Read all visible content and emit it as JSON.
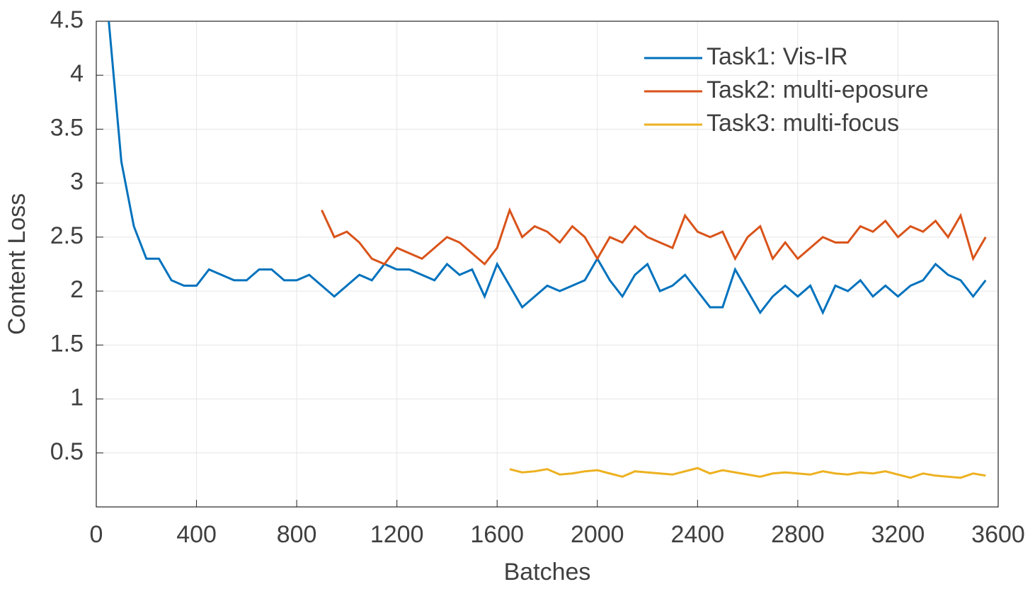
{
  "chart_data": {
    "type": "line",
    "xlabel": "Batches",
    "ylabel": "Content Loss",
    "x": [
      0,
      50,
      100,
      150,
      200,
      250,
      300,
      350,
      400,
      450,
      500,
      550,
      600,
      650,
      700,
      750,
      800,
      850,
      900,
      950,
      1000,
      1050,
      1100,
      1150,
      1200,
      1250,
      1300,
      1350,
      1400,
      1450,
      1500,
      1550,
      1600,
      1650,
      1700,
      1750,
      1800,
      1850,
      1900,
      1950,
      2000,
      2050,
      2100,
      2150,
      2200,
      2250,
      2300,
      2350,
      2400,
      2450,
      2500,
      2550,
      2600,
      2650,
      2700,
      2750,
      2800,
      2850,
      2900,
      2950,
      3000,
      3050,
      3100,
      3150,
      3200,
      3250,
      3300,
      3350,
      3400,
      3450,
      3500,
      3550
    ],
    "series": [
      {
        "name": "Task1: Vis-IR",
        "color": "#0072BD",
        "values": [
          null,
          4.5,
          3.2,
          2.6,
          2.3,
          2.3,
          2.1,
          2.05,
          2.05,
          2.2,
          2.15,
          2.1,
          2.1,
          2.2,
          2.2,
          2.1,
          2.1,
          2.15,
          2.05,
          1.95,
          2.05,
          2.15,
          2.1,
          2.25,
          2.2,
          2.2,
          2.15,
          2.1,
          2.25,
          2.15,
          2.2,
          1.95,
          2.25,
          2.05,
          1.85,
          1.95,
          2.05,
          2.0,
          2.05,
          2.1,
          2.3,
          2.1,
          1.95,
          2.15,
          2.25,
          2.0,
          2.05,
          2.15,
          2.0,
          1.85,
          1.85,
          2.2,
          2.0,
          1.8,
          1.95,
          2.05,
          1.95,
          2.05,
          1.8,
          2.05,
          2.0,
          2.1,
          1.95,
          2.05,
          1.95,
          2.05,
          2.1,
          2.25,
          2.15,
          2.1,
          1.95,
          2.1
        ]
      },
      {
        "name": "Task2: multi-eposure",
        "color": "#D95319",
        "values": [
          null,
          null,
          null,
          null,
          null,
          null,
          null,
          null,
          null,
          null,
          null,
          null,
          null,
          null,
          null,
          null,
          null,
          null,
          2.75,
          2.5,
          2.55,
          2.45,
          2.3,
          2.25,
          2.4,
          2.35,
          2.3,
          2.4,
          2.5,
          2.45,
          2.35,
          2.25,
          2.4,
          2.75,
          2.5,
          2.6,
          2.55,
          2.45,
          2.6,
          2.5,
          2.3,
          2.5,
          2.45,
          2.6,
          2.5,
          2.45,
          2.4,
          2.7,
          2.55,
          2.5,
          2.55,
          2.3,
          2.5,
          2.6,
          2.3,
          2.45,
          2.3,
          2.4,
          2.5,
          2.45,
          2.45,
          2.6,
          2.55,
          2.65,
          2.5,
          2.6,
          2.55,
          2.65,
          2.5,
          2.7,
          2.3,
          2.5
        ]
      },
      {
        "name": "Task3: multi-focus",
        "color": "#EDB120",
        "values": [
          null,
          null,
          null,
          null,
          null,
          null,
          null,
          null,
          null,
          null,
          null,
          null,
          null,
          null,
          null,
          null,
          null,
          null,
          null,
          null,
          null,
          null,
          null,
          null,
          null,
          null,
          null,
          null,
          null,
          null,
          null,
          null,
          null,
          0.35,
          0.32,
          0.33,
          0.35,
          0.3,
          0.31,
          0.33,
          0.34,
          0.31,
          0.28,
          0.33,
          0.32,
          0.31,
          0.3,
          0.33,
          0.36,
          0.31,
          0.34,
          0.32,
          0.3,
          0.28,
          0.31,
          0.32,
          0.31,
          0.3,
          0.33,
          0.31,
          0.3,
          0.32,
          0.31,
          0.33,
          0.3,
          0.27,
          0.31,
          0.29,
          0.28,
          0.27,
          0.31,
          0.29
        ]
      }
    ],
    "xlim": [
      0,
      3600
    ],
    "xticks": [
      0,
      400,
      800,
      1200,
      1600,
      2000,
      2400,
      2800,
      3200,
      3600
    ],
    "ylim": [
      0,
      4.5
    ],
    "yticks": [
      0.5,
      1,
      1.5,
      2,
      2.5,
      3,
      3.5,
      4,
      4.5
    ],
    "grid": true,
    "legend": "northeast"
  }
}
